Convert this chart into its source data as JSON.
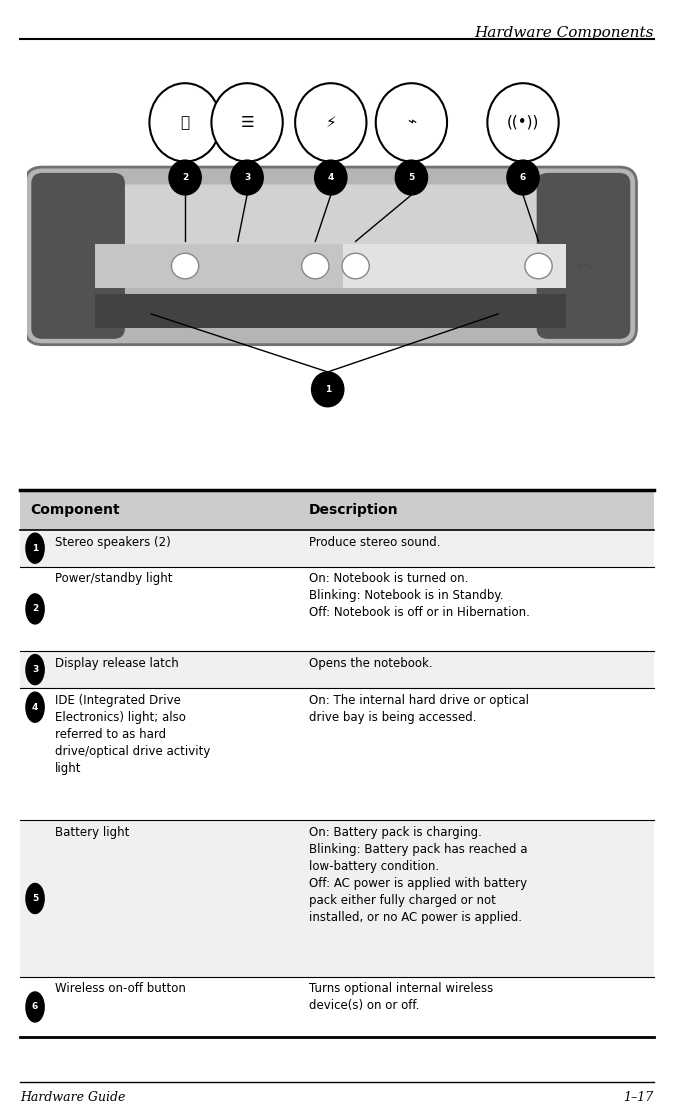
{
  "title": "Hardware Components",
  "footer_left": "Hardware Guide",
  "footer_right": "1–17",
  "table_header": [
    "Component",
    "Description"
  ],
  "rows": [
    {
      "num": "1",
      "component": "Stereo speakers (2)",
      "description": "Produce stereo sound.",
      "comp_lines": 1,
      "desc_lines": 1
    },
    {
      "num": "2",
      "component": "Power/standby light",
      "description": "On: Notebook is turned on.\nBlinking: Notebook is in Standby.\nOff: Notebook is off or in Hibernation.",
      "comp_lines": 1,
      "desc_lines": 3
    },
    {
      "num": "3",
      "component": "Display release latch",
      "description": "Opens the notebook.",
      "comp_lines": 1,
      "desc_lines": 1
    },
    {
      "num": "4",
      "component": "IDE (Integrated Drive\nElectronics) light; also\nreferred to as hard\ndrive/optical drive activity\nlight",
      "description": "On: The internal hard drive or optical\ndrive bay is being accessed.",
      "comp_lines": 5,
      "desc_lines": 2
    },
    {
      "num": "5",
      "component": "Battery light",
      "description": "On: Battery pack is charging.\nBlinking: Battery pack has reached a\nlow-battery condition.\nOff: AC power is applied with battery\npack either fully charged or not\ninstalled, or no AC power is applied.",
      "comp_lines": 1,
      "desc_lines": 6
    },
    {
      "num": "6",
      "component": "Wireless on-off button",
      "description": "Turns optional internal wireless\ndevice(s) on or off.",
      "comp_lines": 1,
      "desc_lines": 2
    }
  ],
  "col_split": 0.44,
  "bg_color": "#ffffff",
  "header_bg": "#cccccc",
  "text_color": "#000000",
  "header_text_color": "#000000"
}
